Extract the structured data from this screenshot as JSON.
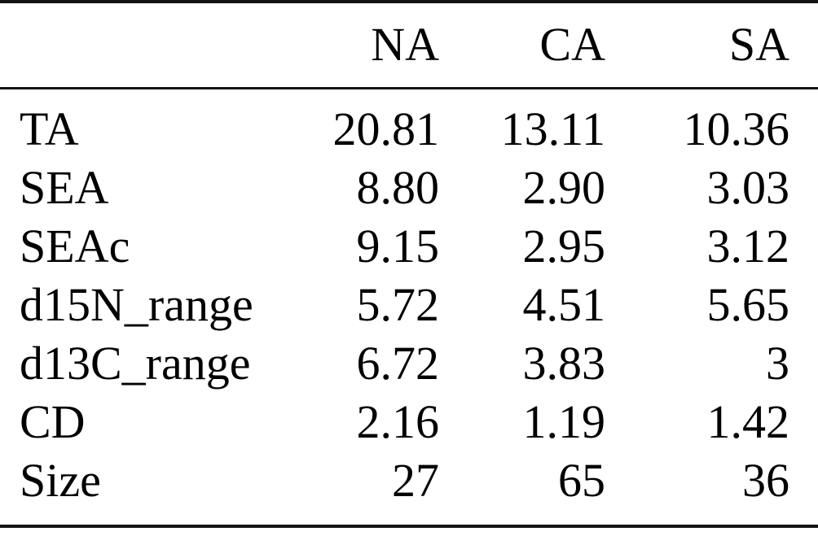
{
  "table": {
    "columns": [
      "",
      "NA",
      "CA",
      "SA"
    ],
    "rows": [
      {
        "label": "TA",
        "values": [
          "20.81",
          "13.11",
          "10.36"
        ]
      },
      {
        "label": "SEA",
        "values": [
          "8.80",
          "2.90",
          "3.03"
        ]
      },
      {
        "label": "SEAc",
        "values": [
          "9.15",
          "2.95",
          "3.12"
        ]
      },
      {
        "label": "d15N_range",
        "values": [
          "5.72",
          "4.51",
          "5.65"
        ]
      },
      {
        "label": "d13C_range",
        "values": [
          "6.72",
          "3.83",
          "3"
        ]
      },
      {
        "label": "CD",
        "values": [
          "2.16",
          "1.19",
          "1.42"
        ]
      },
      {
        "label": "Size",
        "values": [
          "27",
          "65",
          "36"
        ]
      }
    ],
    "rule_color": "#141414",
    "text_color": "#000000",
    "background_color": "#ffffff"
  }
}
